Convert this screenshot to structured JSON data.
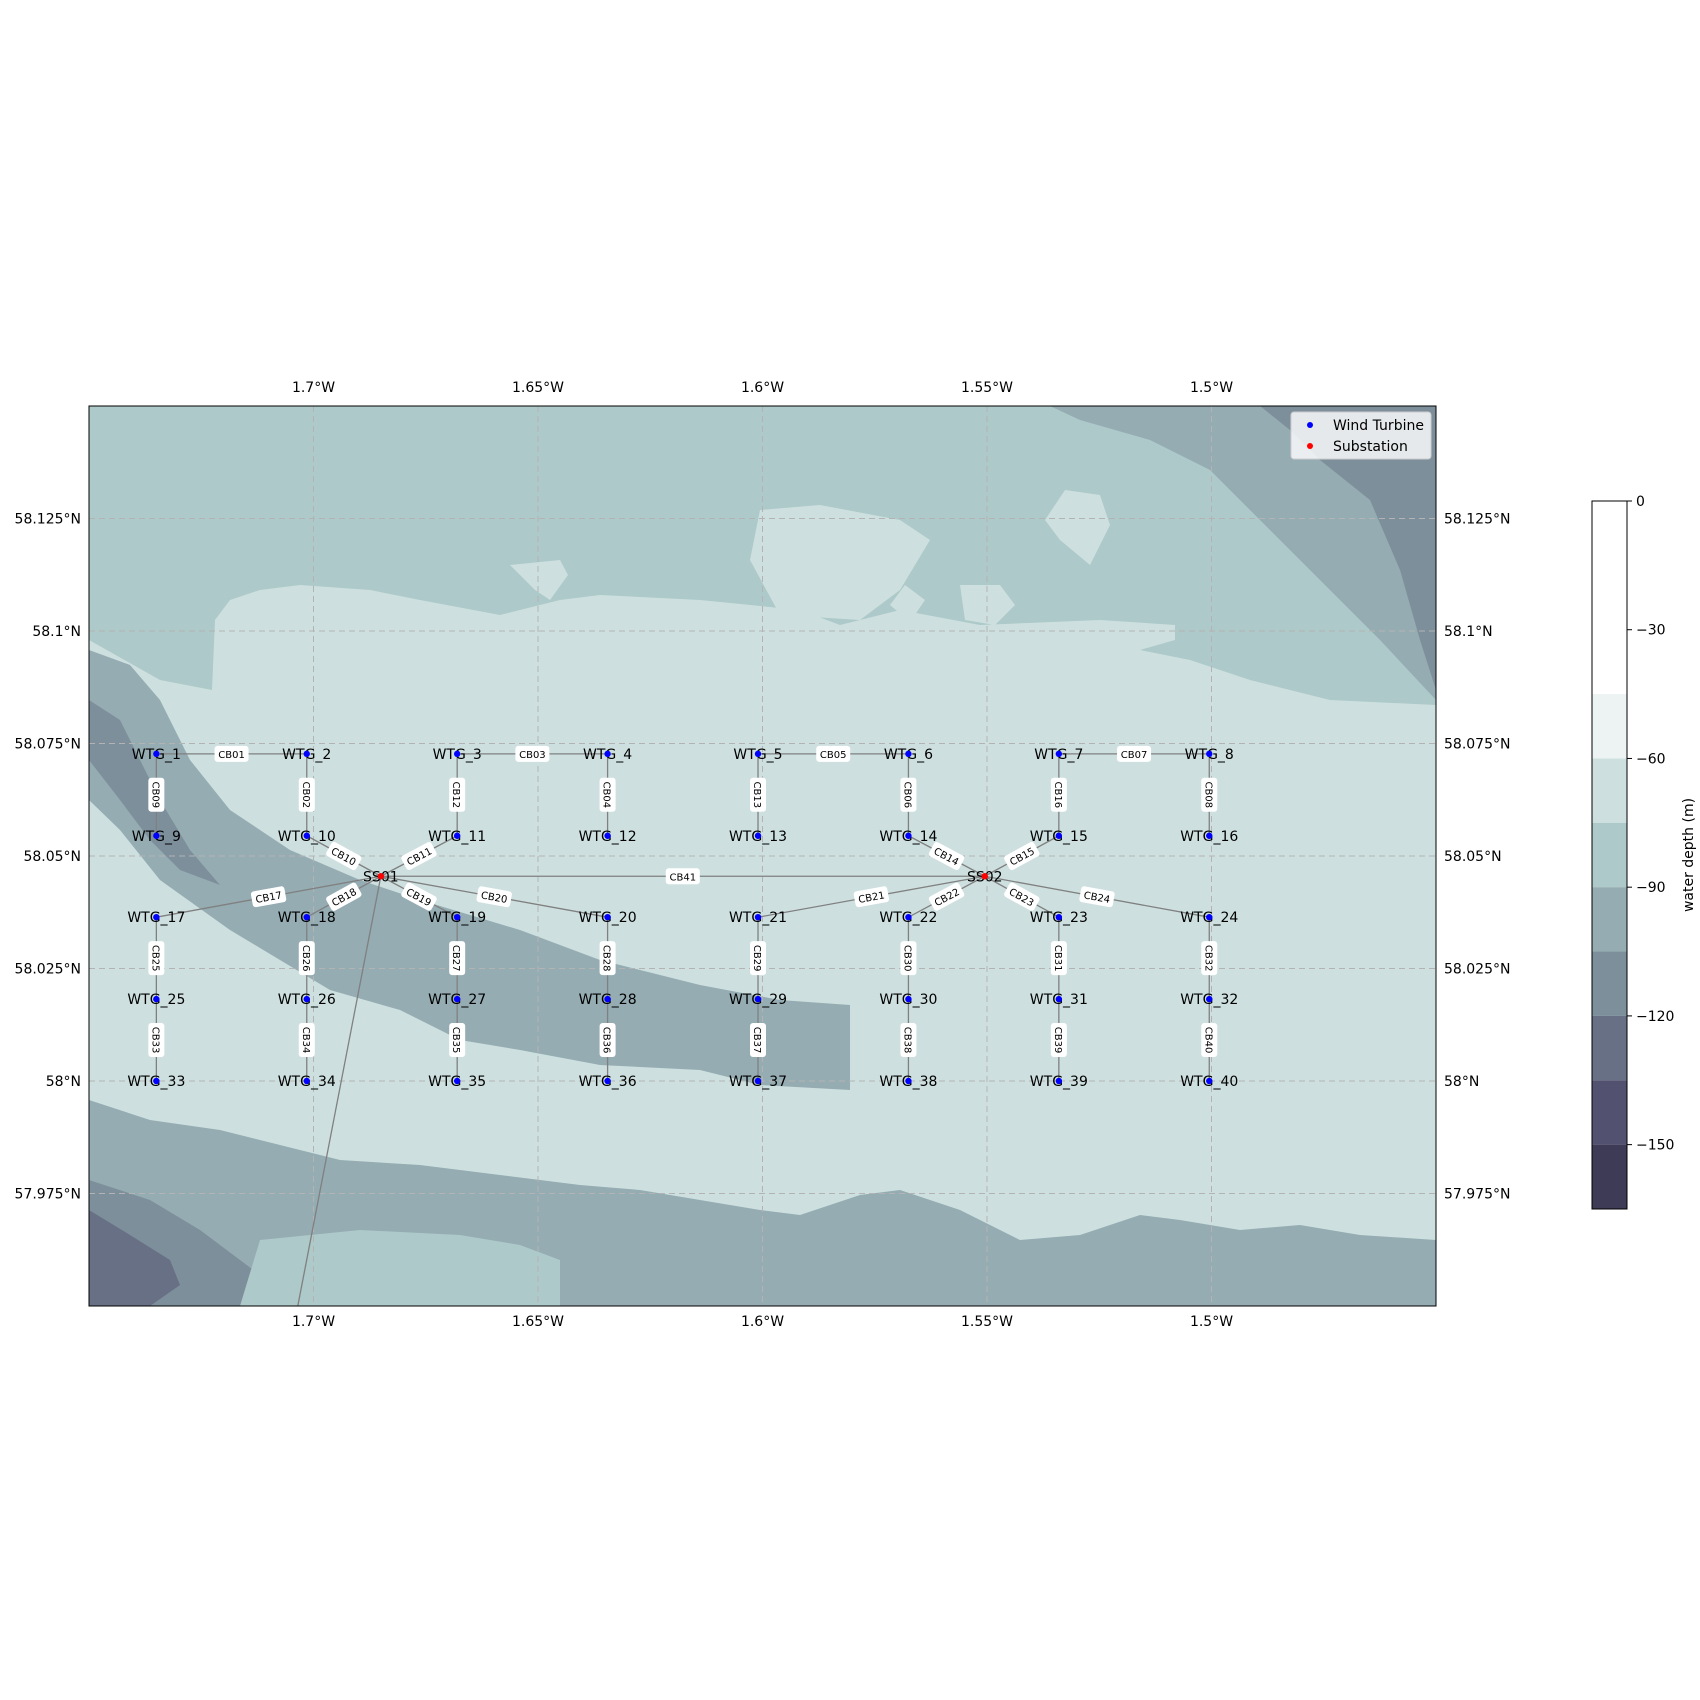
{
  "map": {
    "lon_ticks": [
      "1.7°W",
      "1.65°W",
      "1.6°W",
      "1.55°W",
      "1.5°W"
    ],
    "lat_ticks": [
      "58.125°N",
      "58.1°N",
      "58.075°N",
      "58.05°N",
      "58.025°N",
      "58°N",
      "57.975°N"
    ],
    "extent": {
      "lon_min": -1.75,
      "lon_max": -1.45,
      "lat_min": 57.95,
      "lat_max": 58.15
    },
    "grid": true
  },
  "legend": {
    "placement": "top-right",
    "items": [
      {
        "label": "Wind Turbine",
        "color": "#0000ff"
      },
      {
        "label": "Substation",
        "color": "#ff0000"
      }
    ]
  },
  "colorbar": {
    "label": "water depth (m)",
    "ticks": [
      "0",
      "−30",
      "−60",
      "−90",
      "−120",
      "−150"
    ],
    "levels": [
      0,
      -45,
      -60,
      -75,
      -90,
      -105,
      -120,
      -135,
      -150,
      -165
    ],
    "colors": [
      "#ffffff",
      "#edf3f3",
      "#cde0df",
      "#adc9c9",
      "#94acb2",
      "#7e8f9c",
      "#687086",
      "#525270",
      "#3d3b55"
    ]
  },
  "chart_data": {
    "type": "scatter",
    "xlabel": "",
    "ylabel": "",
    "turbines": [
      {
        "name": "WTG_1",
        "lon": -1.735,
        "lat": 58.0727
      },
      {
        "name": "WTG_2",
        "lon": -1.7015,
        "lat": 58.0727
      },
      {
        "name": "WTG_3",
        "lon": -1.668,
        "lat": 58.0727
      },
      {
        "name": "WTG_4",
        "lon": -1.6345,
        "lat": 58.0727
      },
      {
        "name": "WTG_5",
        "lon": -1.601,
        "lat": 58.0727
      },
      {
        "name": "WTG_6",
        "lon": -1.5675,
        "lat": 58.0727
      },
      {
        "name": "WTG_7",
        "lon": -1.534,
        "lat": 58.0727
      },
      {
        "name": "WTG_8",
        "lon": -1.5005,
        "lat": 58.0727
      },
      {
        "name": "WTG_9",
        "lon": -1.735,
        "lat": 58.0545
      },
      {
        "name": "WTG_10",
        "lon": -1.7015,
        "lat": 58.0545
      },
      {
        "name": "WTG_11",
        "lon": -1.668,
        "lat": 58.0545
      },
      {
        "name": "WTG_12",
        "lon": -1.6345,
        "lat": 58.0545
      },
      {
        "name": "WTG_13",
        "lon": -1.601,
        "lat": 58.0545
      },
      {
        "name": "WTG_14",
        "lon": -1.5675,
        "lat": 58.0545
      },
      {
        "name": "WTG_15",
        "lon": -1.534,
        "lat": 58.0545
      },
      {
        "name": "WTG_16",
        "lon": -1.5005,
        "lat": 58.0545
      },
      {
        "name": "WTG_17",
        "lon": -1.735,
        "lat": 58.0364
      },
      {
        "name": "WTG_18",
        "lon": -1.7015,
        "lat": 58.0364
      },
      {
        "name": "WTG_19",
        "lon": -1.668,
        "lat": 58.0364
      },
      {
        "name": "WTG_20",
        "lon": -1.6345,
        "lat": 58.0364
      },
      {
        "name": "WTG_21",
        "lon": -1.601,
        "lat": 58.0364
      },
      {
        "name": "WTG_22",
        "lon": -1.5675,
        "lat": 58.0364
      },
      {
        "name": "WTG_23",
        "lon": -1.534,
        "lat": 58.0364
      },
      {
        "name": "WTG_24",
        "lon": -1.5005,
        "lat": 58.0364
      },
      {
        "name": "WTG_25",
        "lon": -1.735,
        "lat": 58.0182
      },
      {
        "name": "WTG_26",
        "lon": -1.7015,
        "lat": 58.0182
      },
      {
        "name": "WTG_27",
        "lon": -1.668,
        "lat": 58.0182
      },
      {
        "name": "WTG_28",
        "lon": -1.6345,
        "lat": 58.0182
      },
      {
        "name": "WTG_29",
        "lon": -1.601,
        "lat": 58.0182
      },
      {
        "name": "WTG_30",
        "lon": -1.5675,
        "lat": 58.0182
      },
      {
        "name": "WTG_31",
        "lon": -1.534,
        "lat": 58.0182
      },
      {
        "name": "WTG_32",
        "lon": -1.5005,
        "lat": 58.0182
      },
      {
        "name": "WTG_33",
        "lon": -1.735,
        "lat": 58.0
      },
      {
        "name": "WTG_34",
        "lon": -1.7015,
        "lat": 58.0
      },
      {
        "name": "WTG_35",
        "lon": -1.668,
        "lat": 58.0
      },
      {
        "name": "WTG_36",
        "lon": -1.6345,
        "lat": 58.0
      },
      {
        "name": "WTG_37",
        "lon": -1.601,
        "lat": 58.0
      },
      {
        "name": "WTG_38",
        "lon": -1.5675,
        "lat": 58.0
      },
      {
        "name": "WTG_39",
        "lon": -1.534,
        "lat": 58.0
      },
      {
        "name": "WTG_40",
        "lon": -1.5005,
        "lat": 58.0
      }
    ],
    "substations": [
      {
        "name": "SS01",
        "lon": -1.685,
        "lat": 58.0455
      },
      {
        "name": "SS02",
        "lon": -1.5505,
        "lat": 58.0455
      }
    ],
    "cables": [
      {
        "id": "CB01",
        "from": "WTG_1",
        "to": "WTG_2"
      },
      {
        "id": "CB02",
        "from": "WTG_2",
        "to": "WTG_10"
      },
      {
        "id": "CB03",
        "from": "WTG_3",
        "to": "WTG_4"
      },
      {
        "id": "CB04",
        "from": "WTG_4",
        "to": "WTG_12"
      },
      {
        "id": "CB05",
        "from": "WTG_5",
        "to": "WTG_6"
      },
      {
        "id": "CB06",
        "from": "WTG_6",
        "to": "WTG_14"
      },
      {
        "id": "CB07",
        "from": "WTG_7",
        "to": "WTG_8"
      },
      {
        "id": "CB08",
        "from": "WTG_8",
        "to": "WTG_16"
      },
      {
        "id": "CB09",
        "from": "WTG_1",
        "to": "WTG_9"
      },
      {
        "id": "CB10",
        "from": "WTG_10",
        "to": "SS01"
      },
      {
        "id": "CB11",
        "from": "WTG_11",
        "to": "SS01"
      },
      {
        "id": "CB12",
        "from": "WTG_3",
        "to": "WTG_11"
      },
      {
        "id": "CB13",
        "from": "WTG_5",
        "to": "WTG_13"
      },
      {
        "id": "CB14",
        "from": "WTG_14",
        "to": "SS02"
      },
      {
        "id": "CB15",
        "from": "WTG_15",
        "to": "SS02"
      },
      {
        "id": "CB16",
        "from": "WTG_7",
        "to": "WTG_15"
      },
      {
        "id": "CB17",
        "from": "WTG_17",
        "to": "SS01"
      },
      {
        "id": "CB18",
        "from": "WTG_18",
        "to": "SS01"
      },
      {
        "id": "CB19",
        "from": "WTG_19",
        "to": "SS01"
      },
      {
        "id": "CB20",
        "from": "WTG_20",
        "to": "SS01"
      },
      {
        "id": "CB21",
        "from": "WTG_21",
        "to": "SS02"
      },
      {
        "id": "CB22",
        "from": "WTG_22",
        "to": "SS02"
      },
      {
        "id": "CB23",
        "from": "WTG_23",
        "to": "SS02"
      },
      {
        "id": "CB24",
        "from": "WTG_24",
        "to": "SS02"
      },
      {
        "id": "CB25",
        "from": "WTG_17",
        "to": "WTG_25"
      },
      {
        "id": "CB26",
        "from": "WTG_18",
        "to": "WTG_26"
      },
      {
        "id": "CB27",
        "from": "WTG_19",
        "to": "WTG_27"
      },
      {
        "id": "CB28",
        "from": "WTG_20",
        "to": "WTG_28"
      },
      {
        "id": "CB29",
        "from": "WTG_21",
        "to": "WTG_29"
      },
      {
        "id": "CB30",
        "from": "WTG_22",
        "to": "WTG_30"
      },
      {
        "id": "CB31",
        "from": "WTG_23",
        "to": "WTG_31"
      },
      {
        "id": "CB32",
        "from": "WTG_24",
        "to": "WTG_32"
      },
      {
        "id": "CB33",
        "from": "WTG_25",
        "to": "WTG_33"
      },
      {
        "id": "CB34",
        "from": "WTG_26",
        "to": "WTG_34"
      },
      {
        "id": "CB35",
        "from": "WTG_27",
        "to": "WTG_35"
      },
      {
        "id": "CB36",
        "from": "WTG_28",
        "to": "WTG_36"
      },
      {
        "id": "CB37",
        "from": "WTG_29",
        "to": "WTG_37"
      },
      {
        "id": "CB38",
        "from": "WTG_30",
        "to": "WTG_38"
      },
      {
        "id": "CB39",
        "from": "WTG_31",
        "to": "WTG_39"
      },
      {
        "id": "CB40",
        "from": "WTG_32",
        "to": "WTG_40"
      },
      {
        "id": "CB41",
        "from": "SS01",
        "to": "SS02"
      }
    ],
    "export_cable": {
      "from": "SS01",
      "to_lon": -1.7035,
      "to_lat": 57.95
    }
  }
}
